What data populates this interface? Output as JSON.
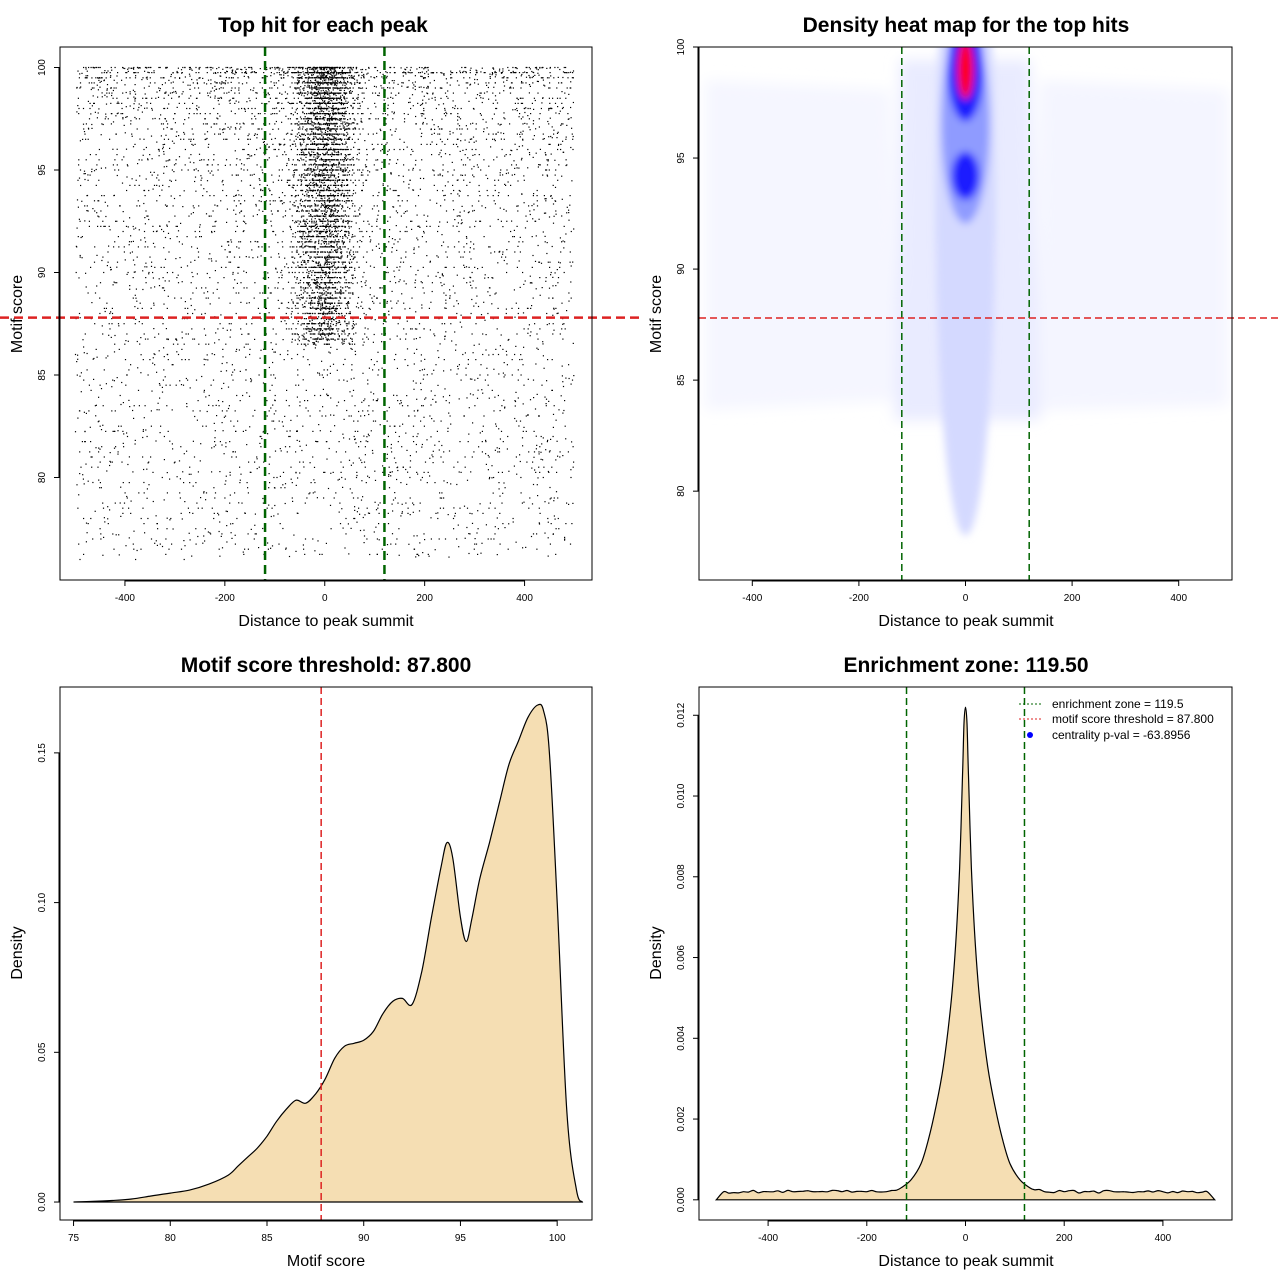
{
  "chart_data": [
    {
      "id": "scatter",
      "type": "scatter",
      "title": "Top hit for each peak",
      "xlabel": "Distance to peak summit",
      "ylabel": "Motif score",
      "xlim": [
        -530,
        535
      ],
      "ylim": [
        75,
        101
      ],
      "xticks": [
        -400,
        -200,
        0,
        200,
        400
      ],
      "yticks": [
        80,
        85,
        90,
        95,
        100
      ],
      "xtick_labels": [
        "-400",
        "-200",
        "0",
        "200",
        "400"
      ],
      "ytick_labels": [
        "80",
        "85",
        "90",
        "95",
        "100"
      ],
      "point_count": 9000,
      "point_color": "#000000",
      "vlines": [
        -119.5,
        119.5
      ],
      "vline_color": "#006400",
      "hline": 87.8,
      "hline_color": "#dd2222",
      "x_range": [
        -499,
        499
      ],
      "score_range": [
        76.1,
        100
      ]
    },
    {
      "id": "heatmap",
      "type": "heatmap",
      "title": "Density heat map for the top hits",
      "xlabel": "Distance to peak summit",
      "ylabel": "Motif score",
      "xlim": [
        -500,
        500
      ],
      "ylim": [
        76,
        100
      ],
      "xticks": [
        -400,
        -200,
        0,
        200,
        400
      ],
      "yticks": [
        80,
        85,
        90,
        95,
        100
      ],
      "xtick_labels": [
        "-400",
        "-200",
        "0",
        "200",
        "400"
      ],
      "ytick_labels": [
        "80",
        "85",
        "90",
        "95",
        "100"
      ],
      "hotspots": [
        {
          "x": 0,
          "y": 99,
          "level": "high"
        },
        {
          "x": 0,
          "y": 94.2,
          "level": "medium"
        }
      ],
      "colors": [
        "#ffffff",
        "#0000ff",
        "#ff0000"
      ],
      "vlines": [
        -119.5,
        119.5
      ],
      "vline_color": "#006400",
      "hline": 87.8,
      "hline_color": "#dd2222"
    },
    {
      "id": "score-density",
      "type": "area",
      "title": "Motif score threshold: 87.800",
      "xlabel": "Motif score",
      "ylabel": "Density",
      "xlim": [
        74.3,
        101.8
      ],
      "ylim": [
        -0.006,
        0.172
      ],
      "xticks": [
        75,
        80,
        85,
        90,
        95,
        100
      ],
      "yticks": [
        0.0,
        0.05,
        0.1,
        0.15
      ],
      "xtick_labels": [
        "75",
        "80",
        "85",
        "90",
        "95",
        "100"
      ],
      "ytick_labels": [
        "0.00",
        "0.05",
        "0.10",
        "0.15"
      ],
      "x": [
        75,
        76,
        77,
        78,
        79,
        80,
        81,
        82,
        83,
        83.5,
        84,
        84.5,
        85,
        85.5,
        86,
        86.5,
        87,
        87.5,
        88,
        88.5,
        89,
        89.5,
        90,
        90.5,
        91,
        91.5,
        92,
        92.5,
        93,
        93.5,
        94,
        94.3,
        94.6,
        95,
        95.3,
        95.6,
        96,
        96.5,
        97,
        97.5,
        98,
        98.5,
        99,
        99.3,
        99.6,
        100,
        100.5,
        101,
        101.3
      ],
      "y": [
        0.0,
        0.0002,
        0.0005,
        0.001,
        0.002,
        0.003,
        0.004,
        0.006,
        0.009,
        0.012,
        0.015,
        0.018,
        0.022,
        0.027,
        0.031,
        0.034,
        0.033,
        0.036,
        0.041,
        0.048,
        0.052,
        0.053,
        0.054,
        0.057,
        0.063,
        0.067,
        0.068,
        0.066,
        0.077,
        0.095,
        0.112,
        0.12,
        0.115,
        0.095,
        0.087,
        0.095,
        0.108,
        0.12,
        0.133,
        0.146,
        0.154,
        0.162,
        0.166,
        0.164,
        0.15,
        0.1,
        0.03,
        0.004,
        0.0
      ],
      "fill_color": "#f5deb3",
      "vline": 87.8,
      "vline_color": "#dd2222"
    },
    {
      "id": "position-density",
      "type": "area",
      "title": "Enrichment zone: 119.50",
      "xlabel": "Distance to peak summit",
      "ylabel": "Density",
      "xlim": [
        -540,
        540
      ],
      "ylim": [
        -0.0005,
        0.0127
      ],
      "xticks": [
        -400,
        -200,
        0,
        200,
        400
      ],
      "yticks": [
        0.0,
        0.002,
        0.004,
        0.006,
        0.008,
        0.01,
        0.012
      ],
      "xtick_labels": [
        "-400",
        "-200",
        "0",
        "200",
        "400"
      ],
      "ytick_labels": [
        "0.000",
        "0.002",
        "0.004",
        "0.006",
        "0.008",
        "0.010",
        "0.012"
      ],
      "x": [
        -505,
        -490,
        -450,
        -400,
        -350,
        -300,
        -250,
        -200,
        -160,
        -130,
        -110,
        -90,
        -75,
        -60,
        -45,
        -30,
        -20,
        -12,
        -6,
        -3,
        0,
        3,
        6,
        12,
        20,
        30,
        45,
        60,
        75,
        90,
        110,
        130,
        160,
        200,
        250,
        300,
        350,
        400,
        450,
        490,
        505
      ],
      "y": [
        0.0,
        0.0002,
        0.0002,
        0.0002,
        0.0002,
        0.0002,
        0.0002,
        0.0002,
        0.0002,
        0.0003,
        0.0005,
        0.0009,
        0.0015,
        0.0023,
        0.0033,
        0.0048,
        0.0063,
        0.0082,
        0.0105,
        0.0118,
        0.0122,
        0.0118,
        0.0105,
        0.0082,
        0.0063,
        0.0048,
        0.0033,
        0.0023,
        0.0015,
        0.0009,
        0.0005,
        0.0003,
        0.0002,
        0.0002,
        0.0002,
        0.0002,
        0.0002,
        0.0002,
        0.0002,
        0.0002,
        0.0
      ],
      "fill_color": "#f5deb3",
      "vlines": [
        -119.5,
        119.5
      ],
      "vline_color": "#006400",
      "legend": {
        "position": "top-right",
        "entries": [
          {
            "label": "enrichment zone = 119.5",
            "style": "dotted",
            "color": "#006400"
          },
          {
            "label": "motif score threshold = 87.800",
            "style": "dotted",
            "color": "#dd2222"
          },
          {
            "label": "centrality p-val = -63.8956",
            "style": "point",
            "color": "#0000ff"
          }
        ]
      }
    }
  ]
}
